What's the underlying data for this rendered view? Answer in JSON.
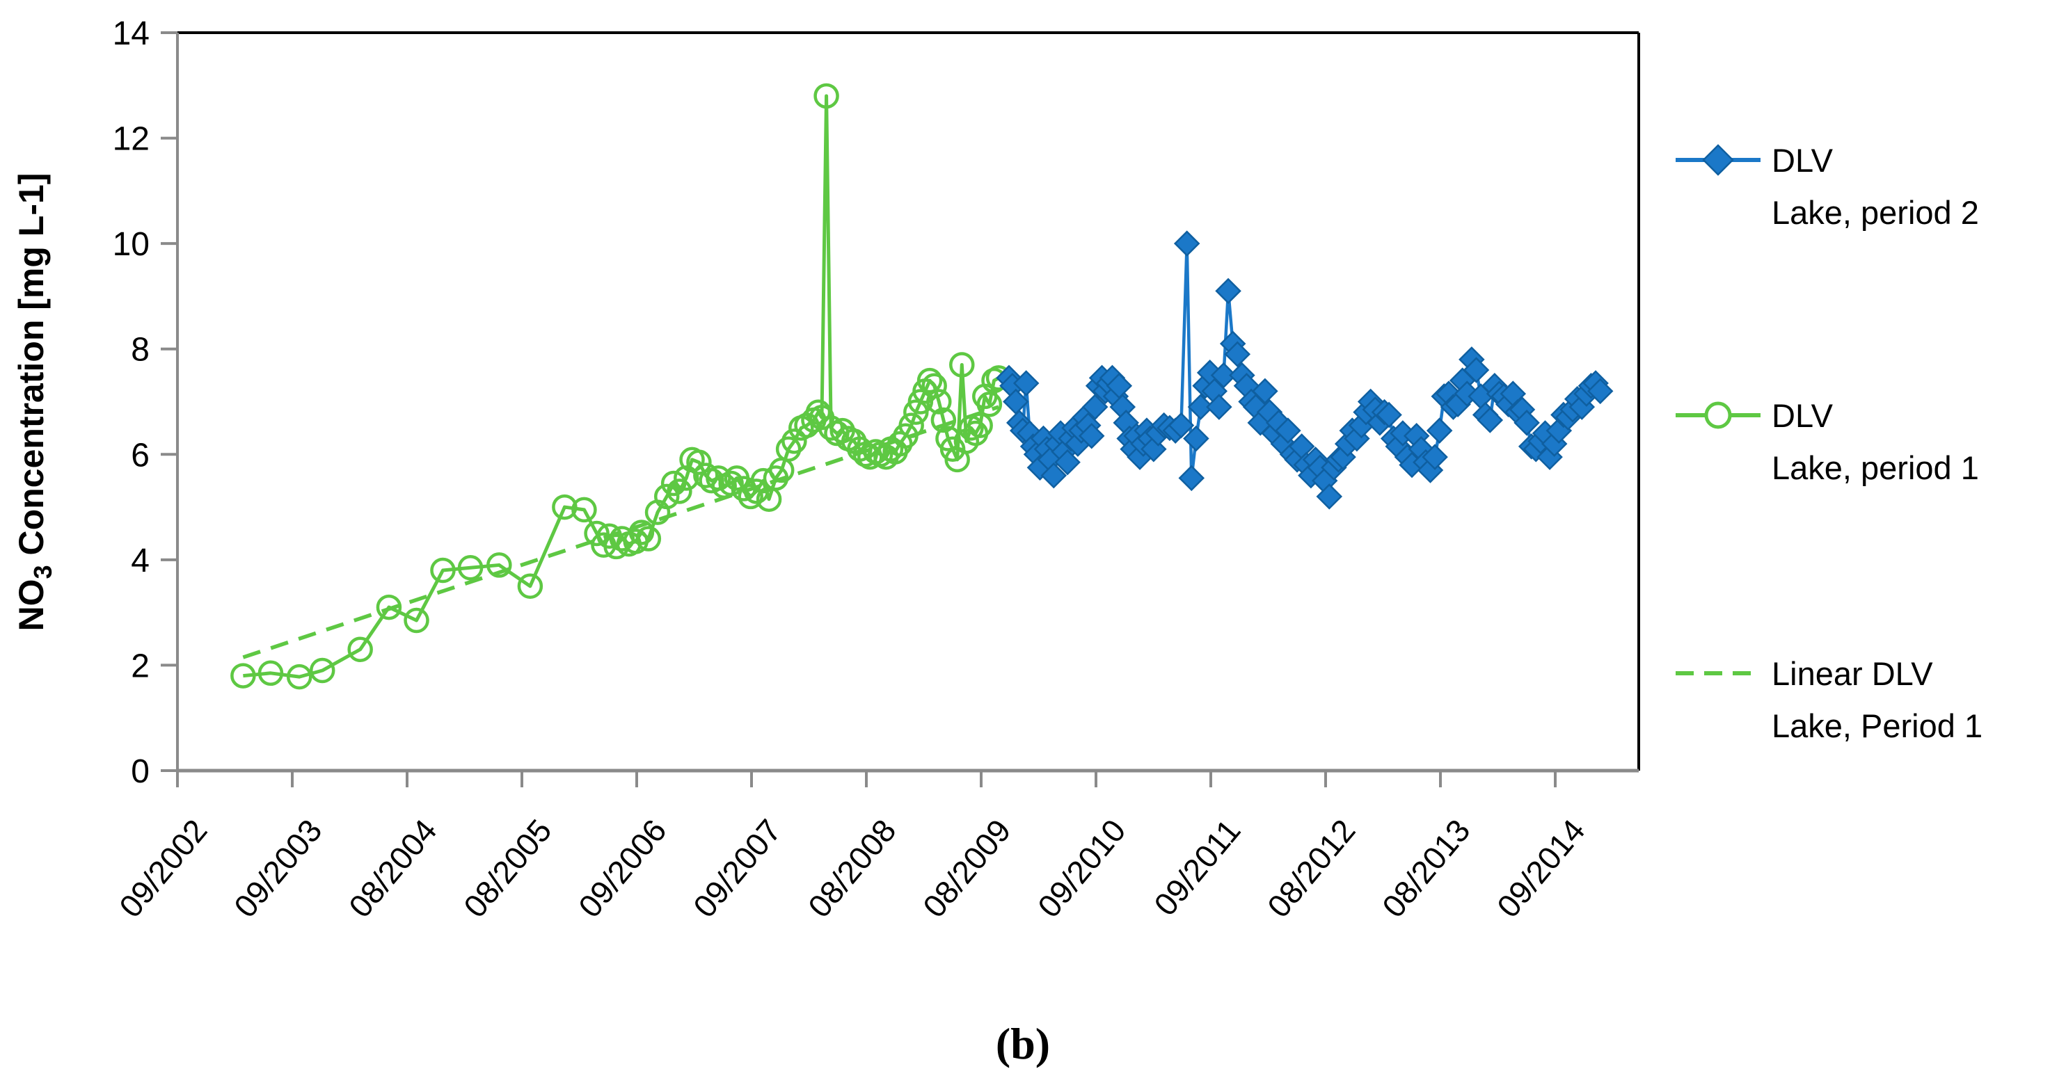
{
  "caption": "(b)",
  "axis": {
    "y_title_prefix": "NO",
    "y_title_sub": "3",
    "y_title_rest": " Concentration [mg L-1]",
    "axis_color": "#8a8a8a",
    "border_color": "#000000",
    "tick_label_color": "#000000"
  },
  "legend": {
    "items": [
      {
        "line1": "DLV",
        "line2": "Lake, period 2",
        "marker": "diamond-line",
        "color": "#1b78c8"
      },
      {
        "line1": "DLV",
        "line2": "Lake, period 1",
        "marker": "circle-line",
        "color": "#5ec843"
      },
      {
        "line1": "Linear DLV",
        "line2": "Lake, Period 1",
        "marker": "dashed-line",
        "color": "#5ec843"
      }
    ]
  },
  "chart_data": {
    "type": "line",
    "title": "",
    "ylabel": "NO3 Concentration [mg L-1]",
    "xlabel": "",
    "ylim": [
      0,
      14
    ],
    "y_ticks": [
      0,
      2,
      4,
      6,
      8,
      10,
      12,
      14
    ],
    "x_tick_labels": [
      "09/2002",
      "09/2003",
      "08/2004",
      "08/2005",
      "09/2006",
      "09/2007",
      "08/2008",
      "08/2009",
      "09/2010",
      "09/2011",
      "08/2012",
      "08/2013",
      "09/2014"
    ],
    "x_start_year": 2002.708,
    "x_end_year": 2015.45,
    "grid": false,
    "legend_position": "right",
    "trendline": {
      "name": "Linear DLV Lake, Period 1",
      "color": "#5ec843",
      "x1": 2003.28,
      "y1": 2.15,
      "x2": 2009.86,
      "y2": 6.9
    },
    "series": [
      {
        "name": "DLV Lake, period 1",
        "marker": "circle",
        "color": "#5ec843",
        "points": [
          [
            2003.28,
            1.8
          ],
          [
            2003.52,
            1.85
          ],
          [
            2003.77,
            1.78
          ],
          [
            2003.97,
            1.9
          ],
          [
            2004.3,
            2.3
          ],
          [
            2004.55,
            3.1
          ],
          [
            2004.79,
            2.85
          ],
          [
            2005.02,
            3.8
          ],
          [
            2005.26,
            3.85
          ],
          [
            2005.51,
            3.9
          ],
          [
            2005.78,
            3.5
          ],
          [
            2006.08,
            5.0
          ],
          [
            2006.25,
            4.95
          ],
          [
            2006.36,
            4.5
          ],
          [
            2006.42,
            4.28
          ],
          [
            2006.47,
            4.45
          ],
          [
            2006.53,
            4.25
          ],
          [
            2006.58,
            4.4
          ],
          [
            2006.64,
            4.3
          ],
          [
            2006.7,
            4.35
          ],
          [
            2006.75,
            4.52
          ],
          [
            2006.81,
            4.4
          ],
          [
            2006.89,
            4.9
          ],
          [
            2006.97,
            5.2
          ],
          [
            2007.03,
            5.45
          ],
          [
            2007.08,
            5.3
          ],
          [
            2007.14,
            5.55
          ],
          [
            2007.19,
            5.9
          ],
          [
            2007.25,
            5.85
          ],
          [
            2007.31,
            5.6
          ],
          [
            2007.36,
            5.5
          ],
          [
            2007.42,
            5.55
          ],
          [
            2007.47,
            5.4
          ],
          [
            2007.53,
            5.45
          ],
          [
            2007.58,
            5.55
          ],
          [
            2007.64,
            5.35
          ],
          [
            2007.7,
            5.2
          ],
          [
            2007.75,
            5.3
          ],
          [
            2007.81,
            5.5
          ],
          [
            2007.86,
            5.15
          ],
          [
            2007.92,
            5.55
          ],
          [
            2007.97,
            5.7
          ],
          [
            2008.03,
            6.1
          ],
          [
            2008.08,
            6.25
          ],
          [
            2008.14,
            6.5
          ],
          [
            2008.19,
            6.55
          ],
          [
            2008.25,
            6.65
          ],
          [
            2008.29,
            6.8
          ],
          [
            2008.32,
            6.7
          ],
          [
            2008.36,
            12.8
          ],
          [
            2008.4,
            6.5
          ],
          [
            2008.45,
            6.4
          ],
          [
            2008.5,
            6.45
          ],
          [
            2008.55,
            6.3
          ],
          [
            2008.6,
            6.25
          ],
          [
            2008.65,
            6.1
          ],
          [
            2008.7,
            6.0
          ],
          [
            2008.74,
            5.95
          ],
          [
            2008.79,
            6.05
          ],
          [
            2008.83,
            6.0
          ],
          [
            2008.88,
            5.95
          ],
          [
            2008.92,
            6.1
          ],
          [
            2008.96,
            6.05
          ],
          [
            2009.0,
            6.2
          ],
          [
            2009.05,
            6.35
          ],
          [
            2009.1,
            6.55
          ],
          [
            2009.14,
            6.8
          ],
          [
            2009.18,
            7.0
          ],
          [
            2009.22,
            7.2
          ],
          [
            2009.26,
            7.4
          ],
          [
            2009.3,
            7.3
          ],
          [
            2009.34,
            7.0
          ],
          [
            2009.38,
            6.65
          ],
          [
            2009.42,
            6.3
          ],
          [
            2009.46,
            6.1
          ],
          [
            2009.5,
            5.9
          ],
          [
            2009.54,
            7.7
          ],
          [
            2009.58,
            6.25
          ],
          [
            2009.62,
            6.5
          ],
          [
            2009.66,
            6.4
          ],
          [
            2009.7,
            6.55
          ],
          [
            2009.74,
            7.1
          ],
          [
            2009.78,
            6.95
          ],
          [
            2009.82,
            7.4
          ],
          [
            2009.86,
            7.45
          ]
        ]
      },
      {
        "name": "DLV Lake, period 2",
        "marker": "diamond",
        "color": "#1b78c8",
        "marker_edge": "#0f5fa0",
        "points": [
          [
            2009.95,
            7.45
          ],
          [
            2009.98,
            7.3
          ],
          [
            2010.01,
            7.0
          ],
          [
            2010.04,
            6.6
          ],
          [
            2010.07,
            6.45
          ],
          [
            2010.1,
            7.35
          ],
          [
            2010.13,
            6.4
          ],
          [
            2010.16,
            6.15
          ],
          [
            2010.19,
            6.0
          ],
          [
            2010.22,
            5.75
          ],
          [
            2010.25,
            6.3
          ],
          [
            2010.28,
            6.1
          ],
          [
            2010.31,
            5.9
          ],
          [
            2010.34,
            5.6
          ],
          [
            2010.37,
            6.2
          ],
          [
            2010.4,
            6.4
          ],
          [
            2010.43,
            6.05
          ],
          [
            2010.46,
            5.85
          ],
          [
            2010.49,
            6.3
          ],
          [
            2010.52,
            6.5
          ],
          [
            2010.55,
            6.2
          ],
          [
            2010.58,
            6.45
          ],
          [
            2010.61,
            6.7
          ],
          [
            2010.64,
            6.55
          ],
          [
            2010.67,
            6.35
          ],
          [
            2010.7,
            6.9
          ],
          [
            2010.73,
            7.3
          ],
          [
            2010.76,
            7.45
          ],
          [
            2010.79,
            7.2
          ],
          [
            2010.82,
            7.35
          ],
          [
            2010.85,
            7.45
          ],
          [
            2010.88,
            7.1
          ],
          [
            2010.91,
            7.3
          ],
          [
            2010.94,
            6.9
          ],
          [
            2010.97,
            6.6
          ],
          [
            2011.0,
            6.3
          ],
          [
            2011.03,
            6.1
          ],
          [
            2011.06,
            6.35
          ],
          [
            2011.09,
            5.95
          ],
          [
            2011.12,
            6.2
          ],
          [
            2011.15,
            6.45
          ],
          [
            2011.18,
            6.3
          ],
          [
            2011.21,
            6.1
          ],
          [
            2011.25,
            6.4
          ],
          [
            2011.3,
            6.55
          ],
          [
            2011.35,
            6.5
          ],
          [
            2011.4,
            6.45
          ],
          [
            2011.45,
            6.55
          ],
          [
            2011.5,
            10.0
          ],
          [
            2011.54,
            5.55
          ],
          [
            2011.58,
            6.3
          ],
          [
            2011.62,
            6.9
          ],
          [
            2011.66,
            7.3
          ],
          [
            2011.7,
            7.55
          ],
          [
            2011.74,
            7.2
          ],
          [
            2011.78,
            6.9
          ],
          [
            2011.82,
            7.5
          ],
          [
            2011.86,
            9.1
          ],
          [
            2011.9,
            8.1
          ],
          [
            2011.94,
            7.9
          ],
          [
            2011.98,
            7.5
          ],
          [
            2012.02,
            7.3
          ],
          [
            2012.06,
            7.0
          ],
          [
            2012.1,
            6.9
          ],
          [
            2012.14,
            6.6
          ],
          [
            2012.18,
            7.2
          ],
          [
            2012.22,
            6.8
          ],
          [
            2012.26,
            6.4
          ],
          [
            2012.3,
            6.6
          ],
          [
            2012.34,
            6.2
          ],
          [
            2012.38,
            6.45
          ],
          [
            2012.42,
            6.0
          ],
          [
            2012.46,
            5.9
          ],
          [
            2012.5,
            6.15
          ],
          [
            2012.54,
            5.8
          ],
          [
            2012.58,
            5.6
          ],
          [
            2012.62,
            5.9
          ],
          [
            2012.66,
            5.75
          ],
          [
            2012.7,
            5.5
          ],
          [
            2012.74,
            5.2
          ],
          [
            2012.78,
            5.75
          ],
          [
            2012.82,
            5.9
          ],
          [
            2012.86,
            5.95
          ],
          [
            2012.9,
            6.2
          ],
          [
            2012.94,
            6.45
          ],
          [
            2012.98,
            6.3
          ],
          [
            2013.02,
            6.55
          ],
          [
            2013.06,
            6.8
          ],
          [
            2013.1,
            7.0
          ],
          [
            2013.14,
            6.85
          ],
          [
            2013.18,
            6.6
          ],
          [
            2013.22,
            6.8
          ],
          [
            2013.26,
            6.75
          ],
          [
            2013.3,
            6.3
          ],
          [
            2013.34,
            6.15
          ],
          [
            2013.38,
            6.4
          ],
          [
            2013.42,
            5.95
          ],
          [
            2013.46,
            5.8
          ],
          [
            2013.5,
            6.35
          ],
          [
            2013.54,
            6.1
          ],
          [
            2013.58,
            5.85
          ],
          [
            2013.62,
            5.7
          ],
          [
            2013.66,
            5.95
          ],
          [
            2013.7,
            6.45
          ],
          [
            2013.74,
            7.1
          ],
          [
            2013.78,
            7.15
          ],
          [
            2013.82,
            6.9
          ],
          [
            2013.86,
            6.95
          ],
          [
            2013.9,
            7.4
          ],
          [
            2013.94,
            7.15
          ],
          [
            2013.98,
            7.8
          ],
          [
            2014.02,
            7.6
          ],
          [
            2014.06,
            7.1
          ],
          [
            2014.1,
            6.75
          ],
          [
            2014.14,
            6.65
          ],
          [
            2014.18,
            7.3
          ],
          [
            2014.22,
            7.15
          ],
          [
            2014.26,
            7.1
          ],
          [
            2014.3,
            6.95
          ],
          [
            2014.34,
            7.15
          ],
          [
            2014.38,
            6.8
          ],
          [
            2014.42,
            6.85
          ],
          [
            2014.46,
            6.6
          ],
          [
            2014.5,
            6.15
          ],
          [
            2014.54,
            6.1
          ],
          [
            2014.58,
            6.25
          ],
          [
            2014.62,
            6.4
          ],
          [
            2014.66,
            5.95
          ],
          [
            2014.7,
            6.2
          ],
          [
            2014.74,
            6.45
          ],
          [
            2014.78,
            6.75
          ],
          [
            2014.82,
            6.7
          ],
          [
            2014.86,
            6.85
          ],
          [
            2014.9,
            7.05
          ],
          [
            2014.94,
            6.9
          ],
          [
            2014.98,
            7.15
          ],
          [
            2015.02,
            7.3
          ],
          [
            2015.06,
            7.35
          ],
          [
            2015.1,
            7.2
          ]
        ]
      }
    ]
  }
}
